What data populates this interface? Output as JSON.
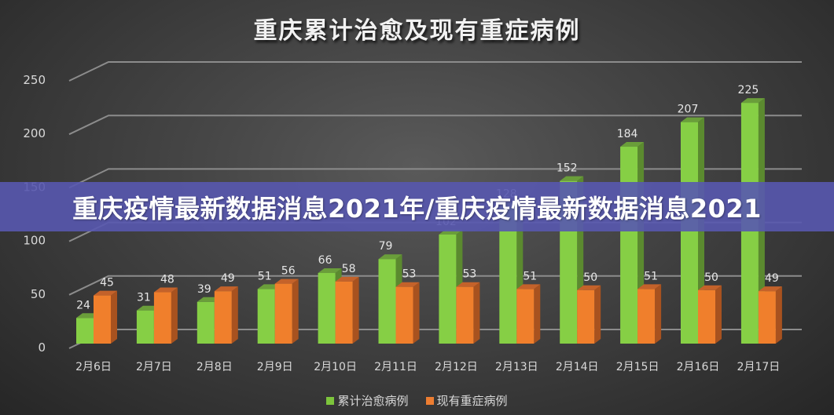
{
  "chart_title": "重庆累计治愈及现有重症病例",
  "banner": {
    "text": "重庆疫情最新数据消息2021年/重庆疫情最新数据消息2021"
  },
  "legend": [
    {
      "label": "累计治愈病例",
      "color": "#7dc53c"
    },
    {
      "label": "现有重症病例",
      "color": "#ed7d31"
    }
  ],
  "colors": {
    "green_front": "#86cf45",
    "green_top": "#6a9e3a",
    "green_side": "#5b8a2f",
    "orange_front": "#f07f2c",
    "orange_top": "#c4622a",
    "orange_side": "#a8521f",
    "grid": "#8c8c8c"
  },
  "chart_data": {
    "type": "bar",
    "subtype": "3d-clustered-column",
    "title": "重庆累计治愈及现有重症病例",
    "xlabel": "",
    "ylabel": "",
    "ylim": [
      0,
      250
    ],
    "yticks": [
      0,
      50,
      100,
      150,
      200,
      250
    ],
    "grid": true,
    "legend_position": "bottom",
    "categories": [
      "2月6日",
      "2月7日",
      "2月8日",
      "2月9日",
      "2月10日",
      "2月11日",
      "2月12日",
      "2月13日",
      "2月14日",
      "2月15日",
      "2月16日",
      "2月17日"
    ],
    "series": [
      {
        "name": "累计治愈病例",
        "color": "#86cf45",
        "values": [
          24,
          31,
          39,
          51,
          66,
          79,
          102,
          128,
          152,
          184,
          207,
          225
        ]
      },
      {
        "name": "现有重症病例",
        "color": "#f07f2c",
        "values": [
          45,
          48,
          49,
          56,
          58,
          53,
          53,
          51,
          50,
          51,
          50,
          49
        ]
      }
    ]
  }
}
